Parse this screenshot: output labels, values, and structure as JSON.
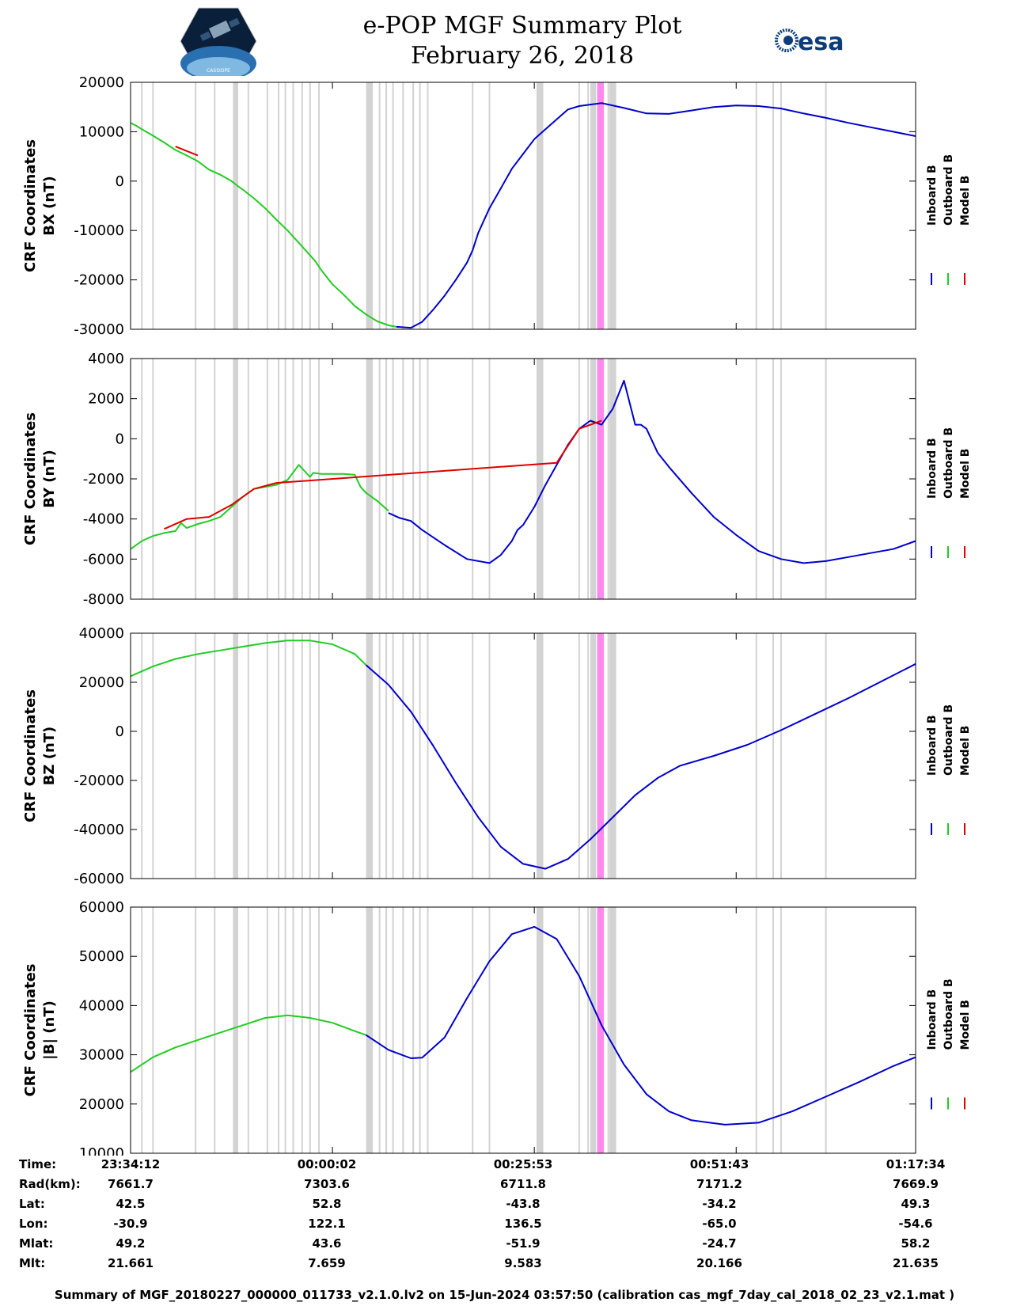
{
  "title_line1": "e-POP MGF Summary Plot",
  "title_line2": "February 26, 2018",
  "logos": {
    "left": "cassiope-satellite-logo",
    "right": "esa-logo",
    "right_text": "esa",
    "left_text": "CASSIOPE"
  },
  "colors": {
    "inboard": "#0000cc",
    "outboard": "#22cc22",
    "model": "#dd0000",
    "gap": "#d3d3d3",
    "gap_highlight": "#ff88ee"
  },
  "legend": [
    "Inboard B",
    "Outboard B",
    "Model B"
  ],
  "chart_data": [
    {
      "type": "line",
      "ylabel_line1": "CRF Coordinates",
      "ylabel_line2": "BX (nT)",
      "ylim": [
        -30000,
        20000
      ],
      "yticks": [
        "20000",
        "10000",
        "0",
        "-10000",
        "-20000",
        "-30000"
      ],
      "ytick_values": [
        20000,
        10000,
        0,
        -10000,
        -20000,
        -30000
      ],
      "series": [
        {
          "name": "Outboard B",
          "x": [
            0,
            0.05,
            0.1,
            0.2,
            0.3,
            0.4,
            0.5,
            0.6,
            0.7,
            0.8,
            0.9,
            0.95,
            1.0,
            1.1,
            1.2,
            1.3,
            1.4,
            1.5,
            1.6,
            1.65,
            1.7,
            1.8,
            1.9,
            2.0,
            2.1,
            2.2,
            2.3,
            2.37
          ],
          "y": [
            11800,
            11200,
            10500,
            9200,
            7800,
            6300,
            5200,
            4000,
            2300,
            1300,
            0,
            -900,
            -1700,
            -3500,
            -5500,
            -7800,
            -10000,
            -12500,
            -15000,
            -16300,
            -18000,
            -20900,
            -23000,
            -25300,
            -27000,
            -28400,
            -29200,
            -29500
          ]
        },
        {
          "name": "Inboard B",
          "x": [
            2.37,
            2.5,
            2.6,
            2.7,
            2.8,
            2.9,
            3.0,
            3.05,
            3.1,
            3.2,
            3.3,
            3.4,
            3.5,
            3.6,
            3.7,
            3.8,
            3.9,
            4.0,
            4.2,
            4.4,
            4.6,
            4.8,
            5.0,
            5.2,
            5.4,
            5.6,
            5.8,
            6.0,
            6.2,
            6.4,
            6.6,
            6.8,
            7.0
          ],
          "y": [
            -29500,
            -29700,
            -28500,
            -26000,
            -23200,
            -20000,
            -16500,
            -14000,
            -10500,
            -5500,
            -1500,
            2500,
            5500,
            8500,
            10500,
            12500,
            14500,
            15200,
            15800,
            14800,
            13700,
            13600,
            14300,
            15000,
            15300,
            15200,
            14700,
            13700,
            12800,
            11800,
            10900,
            10000,
            9100
          ]
        },
        {
          "name": "Model B",
          "x": [
            0.4,
            0.6
          ],
          "y": [
            7000,
            5200
          ]
        }
      ]
    },
    {
      "type": "line",
      "ylabel_line1": "CRF Coordinates",
      "ylabel_line2": "BY (nT)",
      "ylim": [
        -8000,
        4000
      ],
      "yticks": [
        "4000",
        "2000",
        "0",
        "-2000",
        "-4000",
        "-6000",
        "-8000"
      ],
      "ytick_values": [
        4000,
        2000,
        0,
        -2000,
        -4000,
        -6000,
        -8000
      ],
      "series": [
        {
          "name": "Outboard B",
          "x": [
            0,
            0.1,
            0.2,
            0.3,
            0.4,
            0.45,
            0.5,
            0.6,
            0.7,
            0.8,
            0.9,
            1.0,
            1.1,
            1.2,
            1.3,
            1.4,
            1.5,
            1.6,
            1.63,
            1.7,
            1.75,
            1.8,
            1.9,
            2.0,
            2.05,
            2.1,
            2.2,
            2.3
          ],
          "y": [
            -5500,
            -5100,
            -4850,
            -4700,
            -4600,
            -4200,
            -4450,
            -4250,
            -4100,
            -3900,
            -3400,
            -2900,
            -2500,
            -2400,
            -2300,
            -2050,
            -1300,
            -1900,
            -1700,
            -1750,
            -1750,
            -1750,
            -1750,
            -1800,
            -2400,
            -2700,
            -3100,
            -3600
          ]
        },
        {
          "name": "Inboard B",
          "x": [
            2.3,
            2.4,
            2.5,
            2.6,
            2.8,
            3.0,
            3.2,
            3.3,
            3.4,
            3.45,
            3.5,
            3.6,
            3.7,
            3.8,
            3.9,
            4.0,
            4.1,
            4.2,
            4.3,
            4.4,
            4.5,
            4.55,
            4.6,
            4.7,
            4.8,
            5.0,
            5.2,
            5.4,
            5.6,
            5.8,
            6.0,
            6.2,
            6.4,
            6.6,
            6.8,
            7.0
          ],
          "y": [
            -3700,
            -3950,
            -4100,
            -4550,
            -5300,
            -6000,
            -6200,
            -5800,
            -5100,
            -4550,
            -4300,
            -3400,
            -2300,
            -1300,
            -300,
            500,
            900,
            700,
            1500,
            2900,
            700,
            700,
            500,
            -700,
            -1400,
            -2700,
            -3900,
            -4800,
            -5600,
            -6000,
            -6200,
            -6100,
            -5900,
            -5700,
            -5500,
            -5100
          ]
        },
        {
          "name": "Model B",
          "x": [
            0.3,
            0.5,
            0.7,
            0.9,
            1.1,
            1.3,
            3.8,
            4.0,
            4.2
          ],
          "y": [
            -4500,
            -4000,
            -3900,
            -3300,
            -2500,
            -2200,
            -1200,
            500,
            900
          ]
        }
      ]
    },
    {
      "type": "line",
      "ylabel_line1": "CRF Coordinates",
      "ylabel_line2": "BZ (nT)",
      "ylim": [
        -60000,
        40000
      ],
      "yticks": [
        "40000",
        "20000",
        "0",
        "-20000",
        "-40000",
        "-60000"
      ],
      "ytick_values": [
        40000,
        20000,
        0,
        -20000,
        -40000,
        -60000
      ],
      "series": [
        {
          "name": "Outboard B",
          "x": [
            0,
            0.2,
            0.4,
            0.6,
            0.8,
            1.0,
            1.2,
            1.4,
            1.6,
            1.8,
            2.0,
            2.1
          ],
          "y": [
            22500,
            26500,
            29500,
            31500,
            33000,
            34500,
            36000,
            37000,
            37000,
            35500,
            31500,
            27000
          ]
        },
        {
          "name": "Inboard B",
          "x": [
            2.1,
            2.3,
            2.5,
            2.7,
            2.9,
            3.1,
            3.3,
            3.5,
            3.7,
            3.9,
            4.1,
            4.3,
            4.5,
            4.7,
            4.9,
            5.2,
            5.5,
            5.8,
            6.1,
            6.4,
            6.7,
            7.0
          ],
          "y": [
            27000,
            19000,
            8000,
            -6000,
            -21000,
            -35000,
            -47000,
            -54000,
            -56000,
            -52000,
            -44000,
            -35000,
            -26000,
            -19000,
            -14000,
            -10000,
            -5500,
            500,
            7000,
            13500,
            20500,
            27500
          ]
        }
      ]
    },
    {
      "type": "line",
      "ylabel_line1": "CRF Coordinates",
      "ylabel_line2": "|B| (nT)",
      "ylim": [
        10000,
        60000
      ],
      "yticks": [
        "60000",
        "50000",
        "40000",
        "30000",
        "20000",
        "10000"
      ],
      "ytick_values": [
        60000,
        50000,
        40000,
        30000,
        20000,
        10000
      ],
      "series": [
        {
          "name": "Outboard B",
          "x": [
            0,
            0.2,
            0.4,
            0.6,
            0.8,
            1.0,
            1.2,
            1.4,
            1.6,
            1.8,
            2.0,
            2.1
          ],
          "y": [
            26500,
            29500,
            31500,
            33000,
            34500,
            36000,
            37500,
            38000,
            37500,
            36500,
            34800,
            34000
          ]
        },
        {
          "name": "Inboard B",
          "x": [
            2.1,
            2.3,
            2.5,
            2.6,
            2.8,
            3.0,
            3.2,
            3.4,
            3.6,
            3.8,
            4.0,
            4.2,
            4.4,
            4.6,
            4.8,
            5.0,
            5.3,
            5.6,
            5.9,
            6.2,
            6.5,
            6.8,
            7.0
          ],
          "y": [
            34000,
            31000,
            29300,
            29400,
            33500,
            41500,
            49000,
            54500,
            56000,
            53500,
            46000,
            36000,
            28000,
            22000,
            18500,
            16700,
            15800,
            16200,
            18500,
            21500,
            24500,
            27700,
            29500
          ]
        }
      ]
    }
  ],
  "gap_x": [
    0.1,
    0.2,
    0.58,
    0.75,
    0.92,
    1.05,
    1.22,
    1.32,
    1.38,
    1.45,
    1.53,
    1.6,
    1.68,
    2.15,
    2.22,
    2.28,
    2.34,
    2.43,
    2.52,
    2.58,
    2.65,
    3.05,
    3.2,
    3.65,
    4.0,
    4.08,
    4.18,
    4.26,
    5.58,
    5.73,
    5.8,
    6.2
  ],
  "gap_bands": [
    [
      0.92,
      0.96
    ],
    [
      2.1,
      2.16
    ],
    [
      3.62,
      3.68
    ],
    [
      4.1,
      4.15
    ],
    [
      4.27,
      4.33
    ]
  ],
  "highlight_bands": [
    [
      4.16,
      4.22
    ]
  ],
  "x_range": [
    0,
    7
  ],
  "x_tick_positions": [
    1.8,
    3.6,
    5.4
  ],
  "info": {
    "labels": [
      "Time:",
      "Rad(km):",
      "Lat:",
      "Lon:",
      "Mlat:",
      "Mlt:"
    ],
    "columns": [
      [
        "23:34:12",
        "7661.7",
        "42.5",
        "-30.9",
        "49.2",
        "21.661"
      ],
      [
        "00:00:02",
        "7303.6",
        "52.8",
        "122.1",
        "43.6",
        "7.659"
      ],
      [
        "00:25:53",
        "6711.8",
        "-43.8",
        "136.5",
        "-51.9",
        "9.583"
      ],
      [
        "00:51:43",
        "7171.2",
        "-34.2",
        "-65.0",
        "-24.7",
        "20.166"
      ],
      [
        "01:17:34",
        "7669.9",
        "49.3",
        "-54.6",
        "58.2",
        "21.635"
      ]
    ]
  },
  "footer": "Summary of MGF_20180227_000000_011733_v2.1.0.lv2 on 15-Jun-2024 03:57:50 (calibration cas_mgf_7day_cal_2018_02_23_v2.1.mat )"
}
